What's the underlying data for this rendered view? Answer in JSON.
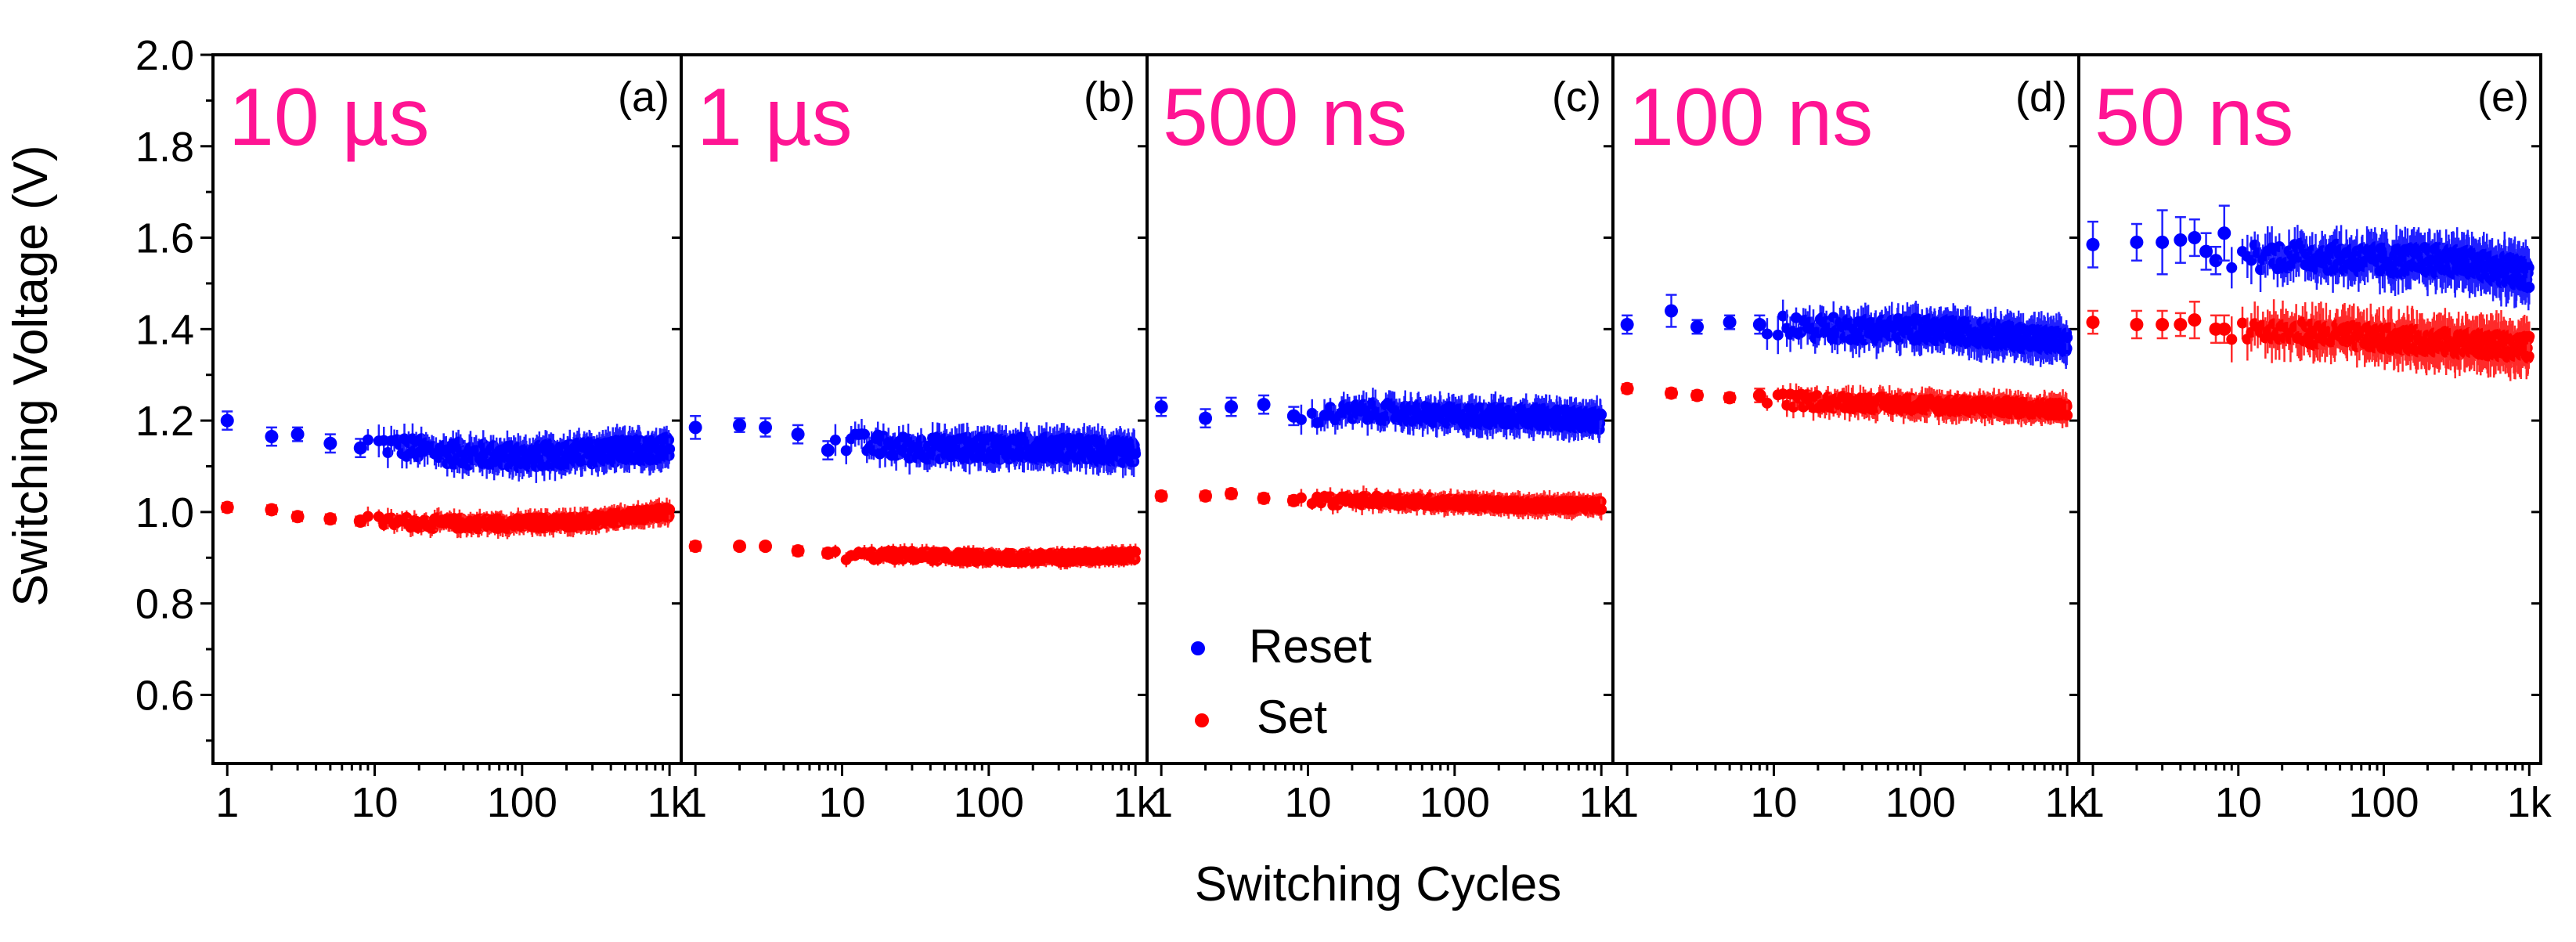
{
  "chart_data": {
    "type": "scatter",
    "y_axis": {
      "label": "Switching Voltage (V)",
      "range": [
        0.45,
        2.0
      ],
      "ticks": [
        "0.6",
        "0.8",
        "1.0",
        "1.2",
        "1.4",
        "1.6",
        "1.8",
        "2.0"
      ],
      "tick_values": [
        0.6,
        0.8,
        1.0,
        1.2,
        1.4,
        1.6,
        1.8,
        2.0
      ]
    },
    "x_axis": {
      "label": "Switching Cycles",
      "scale": "log",
      "range": [
        0.8,
        1200
      ],
      "ticks": [
        "1",
        "10",
        "100",
        "1k"
      ],
      "tick_values": [
        1,
        10,
        100,
        1000
      ]
    },
    "legend": {
      "position": "bottom-left of panel (c)",
      "entries": [
        {
          "name": "Reset",
          "color": "#0000ff"
        },
        {
          "name": "Set",
          "color": "#ff0000"
        }
      ]
    },
    "panels": [
      {
        "id": "a",
        "label": "(a)",
        "title": "10 µs",
        "reset": {
          "start_points": [
            [
              1,
              1.2,
              0.02
            ],
            [
              2,
              1.165,
              0.02
            ],
            [
              3,
              1.17,
              0.015
            ],
            [
              5,
              1.15,
              0.02
            ],
            [
              8,
              1.14,
              0.02
            ]
          ],
          "trend": [
            [
              10,
              1.15
            ],
            [
              30,
              1.13
            ],
            [
              100,
              1.12
            ],
            [
              300,
              1.13
            ],
            [
              1000,
              1.14
            ]
          ],
          "spread": 0.025,
          "err": 0.03
        },
        "set": {
          "start_points": [
            [
              1,
              1.01,
              0.01
            ],
            [
              2,
              1.005,
              0.01
            ],
            [
              3,
              0.99,
              0.01
            ],
            [
              5,
              0.985,
              0.01
            ],
            [
              8,
              0.98,
              0.01
            ]
          ],
          "trend": [
            [
              10,
              0.98
            ],
            [
              30,
              0.975
            ],
            [
              100,
              0.975
            ],
            [
              300,
              0.98
            ],
            [
              1000,
              1.0
            ]
          ],
          "spread": 0.012,
          "err": 0.02
        }
      },
      {
        "id": "b",
        "label": "(b)",
        "title": "1 µs",
        "reset": {
          "start_points": [
            [
              1,
              1.185,
              0.025
            ],
            [
              2,
              1.19,
              0.015
            ],
            [
              3,
              1.185,
              0.02
            ],
            [
              5,
              1.17,
              0.02
            ],
            [
              8,
              1.135,
              0.02
            ]
          ],
          "trend": [
            [
              10,
              1.15
            ],
            [
              30,
              1.14
            ],
            [
              100,
              1.14
            ],
            [
              300,
              1.14
            ],
            [
              1000,
              1.13
            ]
          ],
          "spread": 0.025,
          "err": 0.03
        },
        "set": {
          "start_points": [
            [
              1,
              0.925,
              0.01
            ],
            [
              2,
              0.925,
              0.008
            ],
            [
              3,
              0.925,
              0.008
            ],
            [
              5,
              0.915,
              0.01
            ],
            [
              8,
              0.91,
              0.01
            ]
          ],
          "trend": [
            [
              10,
              0.905
            ],
            [
              30,
              0.905
            ],
            [
              100,
              0.9
            ],
            [
              300,
              0.9
            ],
            [
              1000,
              0.905
            ]
          ],
          "spread": 0.01,
          "err": 0.015
        }
      },
      {
        "id": "c",
        "label": "(c)",
        "title": "500 ns",
        "reset": {
          "start_points": [
            [
              1,
              1.23,
              0.02
            ],
            [
              2,
              1.205,
              0.02
            ],
            [
              3,
              1.23,
              0.02
            ],
            [
              5,
              1.235,
              0.02
            ],
            [
              8,
              1.21,
              0.02
            ]
          ],
          "trend": [
            [
              10,
              1.21
            ],
            [
              30,
              1.22
            ],
            [
              100,
              1.21
            ],
            [
              300,
              1.21
            ],
            [
              1000,
              1.2
            ]
          ],
          "spread": 0.02,
          "err": 0.03
        },
        "set": {
          "start_points": [
            [
              1,
              1.035,
              0.01
            ],
            [
              2,
              1.035,
              0.01
            ],
            [
              3,
              1.04,
              0.01
            ],
            [
              5,
              1.03,
              0.01
            ],
            [
              8,
              1.025,
              0.01
            ]
          ],
          "trend": [
            [
              10,
              1.025
            ],
            [
              30,
              1.025
            ],
            [
              100,
              1.02
            ],
            [
              300,
              1.015
            ],
            [
              1000,
              1.015
            ]
          ],
          "spread": 0.01,
          "err": 0.02
        }
      },
      {
        "id": "d",
        "label": "(d)",
        "title": "100 ns",
        "reset": {
          "start_points": [
            [
              1,
              1.41,
              0.02
            ],
            [
              2,
              1.44,
              0.035
            ],
            [
              3,
              1.405,
              0.015
            ],
            [
              5,
              1.415,
              0.015
            ],
            [
              8,
              1.41,
              0.02
            ]
          ],
          "trend": [
            [
              10,
              1.41
            ],
            [
              30,
              1.4
            ],
            [
              100,
              1.4
            ],
            [
              300,
              1.39
            ],
            [
              1000,
              1.37
            ]
          ],
          "spread": 0.025,
          "err": 0.035
        },
        "set": {
          "start_points": [
            [
              1,
              1.27,
              0.01
            ],
            [
              2,
              1.26,
              0.01
            ],
            [
              3,
              1.255,
              0.01
            ],
            [
              5,
              1.25,
              0.01
            ],
            [
              8,
              1.255,
              0.015
            ]
          ],
          "trend": [
            [
              10,
              1.245
            ],
            [
              30,
              1.24
            ],
            [
              100,
              1.235
            ],
            [
              300,
              1.23
            ],
            [
              1000,
              1.225
            ]
          ],
          "spread": 0.015,
          "err": 0.025
        }
      },
      {
        "id": "e",
        "label": "(e)",
        "title": "50 ns",
        "reset": {
          "start_points": [
            [
              1,
              1.585,
              0.05
            ],
            [
              2,
              1.59,
              0.04
            ],
            [
              3,
              1.59,
              0.07
            ],
            [
              4,
              1.595,
              0.05
            ],
            [
              5,
              1.6,
              0.04
            ],
            [
              6,
              1.57,
              0.04
            ],
            [
              7,
              1.55,
              0.03
            ],
            [
              8,
              1.61,
              0.06
            ]
          ],
          "trend": [
            [
              10,
              1.56
            ],
            [
              30,
              1.56
            ],
            [
              100,
              1.55
            ],
            [
              300,
              1.55
            ],
            [
              1000,
              1.52
            ]
          ],
          "spread": 0.03,
          "err": 0.045
        },
        "set": {
          "start_points": [
            [
              1,
              1.415,
              0.025
            ],
            [
              2,
              1.41,
              0.03
            ],
            [
              3,
              1.41,
              0.03
            ],
            [
              4,
              1.41,
              0.025
            ],
            [
              5,
              1.42,
              0.04
            ],
            [
              7,
              1.4,
              0.03
            ],
            [
              8,
              1.4,
              0.03
            ]
          ],
          "trend": [
            [
              10,
              1.4
            ],
            [
              30,
              1.39
            ],
            [
              100,
              1.38
            ],
            [
              300,
              1.37
            ],
            [
              1000,
              1.36
            ]
          ],
          "spread": 0.025,
          "err": 0.045
        }
      }
    ]
  }
}
